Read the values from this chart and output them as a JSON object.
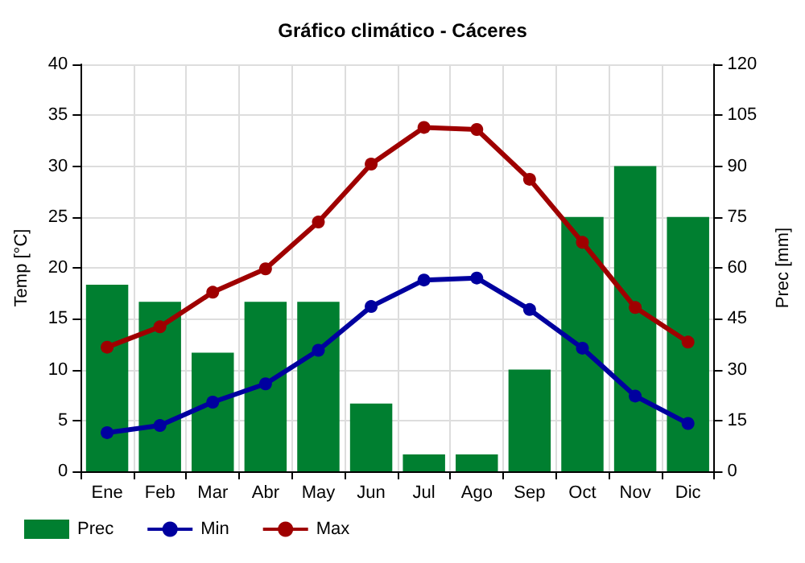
{
  "chart_data": {
    "type": "bar",
    "title": "Gráfico climático - Cáceres",
    "ylabel": "Temp [°C]",
    "y2label": "Prec [mm]",
    "categories": [
      "Ene",
      "Feb",
      "Mar",
      "Abr",
      "May",
      "Jun",
      "Jul",
      "Ago",
      "Sep",
      "Oct",
      "Nov",
      "Dic"
    ],
    "series": [
      {
        "name": "Prec",
        "axis": "y2",
        "color": "#007f30",
        "values": [
          55,
          50,
          35,
          50,
          50,
          20,
          5,
          5,
          30,
          75,
          90,
          75
        ]
      },
      {
        "name": "Min",
        "type": "line",
        "color": "#00009f",
        "values": [
          3.8,
          4.5,
          6.8,
          8.6,
          11.9,
          16.2,
          18.8,
          19.0,
          15.9,
          12.1,
          7.4,
          4.7
        ]
      },
      {
        "name": "Max",
        "type": "line",
        "color": "#9f0000",
        "values": [
          12.2,
          14.2,
          17.6,
          19.9,
          24.5,
          30.2,
          33.8,
          33.6,
          28.7,
          22.5,
          16.1,
          12.7
        ]
      }
    ],
    "ylim": [
      0,
      40
    ],
    "yticks": [
      0,
      5,
      10,
      15,
      20,
      25,
      30,
      35,
      40
    ],
    "y2lim": [
      0,
      120
    ],
    "y2ticks": [
      0,
      15,
      30,
      45,
      60,
      75,
      90,
      105,
      120
    ],
    "grid": true,
    "legend": "bottom left",
    "marker": "circle",
    "line_style": "solid"
  }
}
